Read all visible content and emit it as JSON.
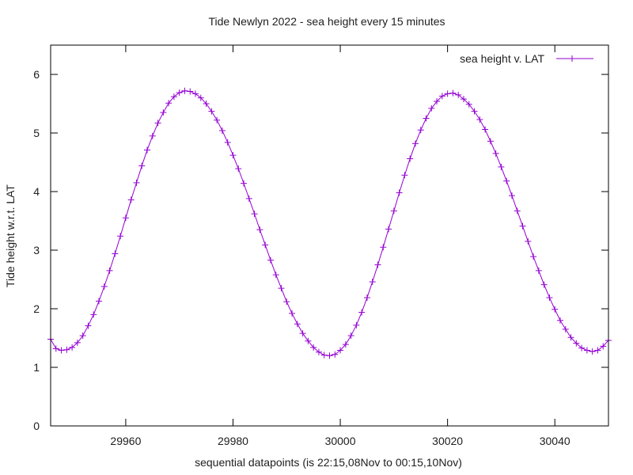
{
  "chart_data": {
    "type": "line",
    "title": "Tide Newlyn 2022 - sea height every 15 minutes",
    "xlabel": "sequential datapoints (is 22:15,08Nov to 00:15,10Nov)",
    "ylabel": "Tide height w.r.t. LAT",
    "xlim": [
      29946,
      30050
    ],
    "ylim": [
      0,
      6.5
    ],
    "xticks": [
      29960,
      29980,
      30000,
      30020,
      30040
    ],
    "yticks": [
      0,
      1,
      2,
      3,
      4,
      5,
      6
    ],
    "grid": false,
    "legend_position": "top-right",
    "series": [
      {
        "name": "sea height v. LAT",
        "color": "#9400d3",
        "marker": "plus",
        "x_start": 29946,
        "x_step": 1,
        "values": [
          1.48,
          1.32,
          1.29,
          1.3,
          1.34,
          1.42,
          1.54,
          1.71,
          1.9,
          2.13,
          2.38,
          2.65,
          2.94,
          3.24,
          3.55,
          3.86,
          4.15,
          4.44,
          4.71,
          4.95,
          5.17,
          5.35,
          5.51,
          5.62,
          5.69,
          5.72,
          5.71,
          5.67,
          5.6,
          5.5,
          5.37,
          5.22,
          5.04,
          4.84,
          4.62,
          4.39,
          4.14,
          3.88,
          3.62,
          3.35,
          3.09,
          2.83,
          2.58,
          2.35,
          2.12,
          1.92,
          1.74,
          1.58,
          1.45,
          1.34,
          1.26,
          1.21,
          1.2,
          1.22,
          1.29,
          1.39,
          1.54,
          1.72,
          1.94,
          2.19,
          2.46,
          2.75,
          3.05,
          3.36,
          3.67,
          3.98,
          4.28,
          4.56,
          4.82,
          5.05,
          5.25,
          5.42,
          5.54,
          5.63,
          5.67,
          5.68,
          5.65,
          5.58,
          5.49,
          5.37,
          5.23,
          5.06,
          4.86,
          4.65,
          4.42,
          4.18,
          3.93,
          3.67,
          3.41,
          3.15,
          2.89,
          2.65,
          2.41,
          2.19,
          1.99,
          1.8,
          1.65,
          1.51,
          1.41,
          1.33,
          1.29,
          1.27,
          1.29,
          1.36,
          1.46
        ]
      }
    ]
  }
}
